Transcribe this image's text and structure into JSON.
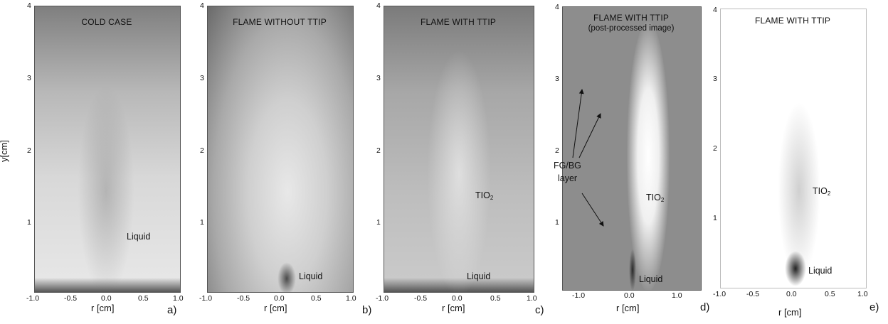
{
  "y_axis_label": "y[cm]",
  "panels": [
    {
      "id": "a",
      "title": "COLD CASE",
      "subtitle": "",
      "annotations": [
        "Liquid"
      ],
      "x_ticks": [
        "-1.0",
        "-0.5",
        "0.0",
        "0.5",
        "1.0"
      ],
      "y_ticks": [
        "4",
        "3",
        "2",
        "1"
      ],
      "x_label": "r [cm]",
      "panel_label": "a)"
    },
    {
      "id": "b",
      "title": "FLAME WITHOUT TTIP",
      "subtitle": "",
      "annotations": [
        "Liquid"
      ],
      "x_ticks": [
        "-1.0",
        "-0.5",
        "0.0",
        "0.5",
        "1.0"
      ],
      "y_ticks": [
        "4",
        "3",
        "2",
        "1"
      ],
      "x_label": "r [cm]",
      "panel_label": "b)"
    },
    {
      "id": "c",
      "title": "FLAME WITH TTIP",
      "subtitle": "",
      "annotations": [
        "TIO",
        "2",
        "Liquid"
      ],
      "x_ticks": [
        "-1.0",
        "-0.5",
        "0.0",
        "0.5",
        "1.0"
      ],
      "y_ticks": [
        "4",
        "3",
        "2",
        "1"
      ],
      "x_label": "r [cm]",
      "panel_label": "c)"
    },
    {
      "id": "d",
      "title": "FLAME WITH TTIP",
      "subtitle": "(post-processed image)",
      "annotations": [
        "FG/BG",
        "layer",
        "TIO",
        "2",
        "Liquid"
      ],
      "x_ticks": [
        "-1.0",
        "0.0",
        "1.0"
      ],
      "y_ticks": [
        "4",
        "3",
        "2",
        "1"
      ],
      "x_label": "r [cm]",
      "panel_label": "d)"
    },
    {
      "id": "e",
      "title": "FLAME WITH TTIP",
      "subtitle": "",
      "annotations": [
        "TIO",
        "2",
        "Liquid"
      ],
      "x_ticks": [
        "-1.0",
        "-0.5",
        "0.0",
        "0.5",
        "1.0"
      ],
      "y_ticks": [
        "4",
        "3",
        "2",
        "1"
      ],
      "x_label": "r [cm]",
      "panel_label": "e)"
    }
  ]
}
